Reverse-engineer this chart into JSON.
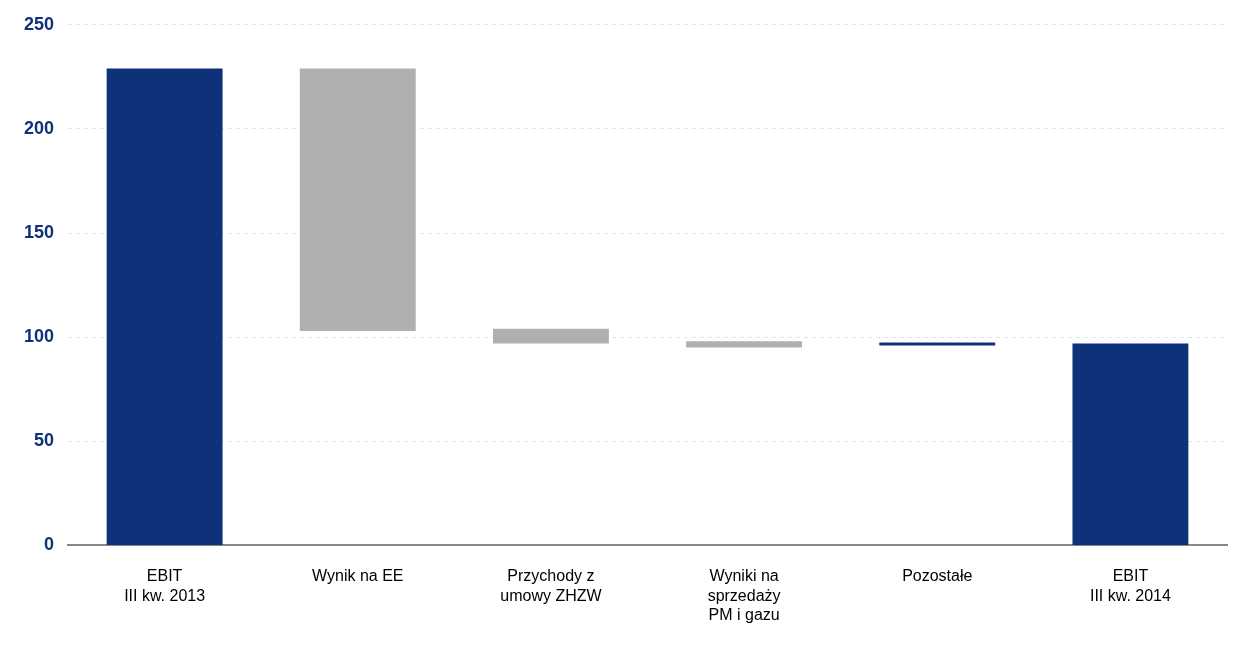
{
  "chart_data": {
    "type": "bar",
    "categories": [
      "EBIT\nIII kw. 2013",
      "Wynik na EE",
      "Przychody z\numowy ZHZW",
      "Wyniki na\nsprzedaży\nPM i gazu",
      "Pozostałe",
      "EBIT\nIII kw. 2014"
    ],
    "values": [
      229,
      -126,
      -7,
      -3,
      -1,
      97
    ],
    "base": [
      0,
      229,
      104,
      98,
      97,
      0
    ],
    "colors": [
      "#0f3179",
      "#b0b0b0",
      "#b0b0b0",
      "#b0b0b0",
      "#0f3179",
      "#0f3179"
    ],
    "ylim": [
      0,
      250
    ],
    "yticks": [
      0,
      50,
      100,
      150,
      200,
      250
    ],
    "grid": "y",
    "legend": false
  }
}
